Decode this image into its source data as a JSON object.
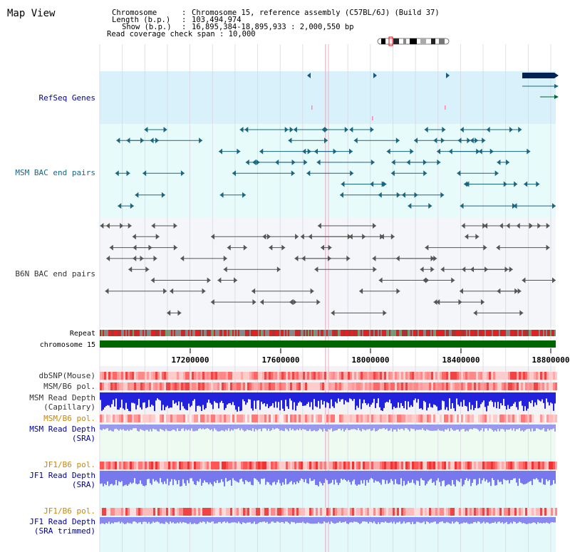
{
  "header": {
    "title": "Map View",
    "info_lines": [
      {
        "label": "Chromosome",
        "value": "Chromosome 15, reference assembly (C57BL/6J) (Build 37)"
      },
      {
        "label": "Length (b.p.)",
        "value": "103,494,974"
      },
      {
        "label": "Show (b.p.)",
        "value": "16,895,384-18,895,933 : 2,000,550 bp"
      }
    ],
    "coverage_line": "Read coverage check span : 10,000"
  },
  "tracks": {
    "refseq": {
      "label": "RefSeq Genes",
      "color": "#000099"
    },
    "msm_bac": {
      "label": "MSM BAC end pairs",
      "color": "#1a6680"
    },
    "b6n_bac": {
      "label": "B6N BAC end pairs",
      "color": "#333333"
    },
    "repeat": {
      "label": "Repeat"
    },
    "chromosome": {
      "label": "chromosome 15",
      "color": "#006600"
    },
    "dbsnp": {
      "label": "dbSNP(Mouse)"
    },
    "msm_b6_pol": {
      "label": "MSM/B6 pol."
    },
    "msm_depth_cap": {
      "label_line1": "MSM Read Depth",
      "label_line2": "(Capillary)"
    },
    "msm_b6_pol2": {
      "label": "MSM/B6 pol."
    },
    "msm_depth_sra": {
      "label_line1": "MSM Read Depth",
      "label_line2": "(SRA)"
    },
    "jf1_b6_pol": {
      "label": "JF1/B6 pol."
    },
    "jf1_depth_sra": {
      "label_line1": "JF1 Read Depth",
      "label_line2": "(SRA)"
    },
    "jf1_b6_pol2": {
      "label": "JF1/B6 pol."
    },
    "jf1_depth_trim": {
      "label_line1": "JF1 Read Depth",
      "label_line2": "(SRA trimmed)"
    }
  },
  "axis": {
    "ticks": [
      "17200000",
      "17600000",
      "18000000",
      "18400000",
      "18800000"
    ]
  },
  "colors": {
    "grey_label": "#333333",
    "dark_blue_label": "#000099",
    "orange_label": "#cc8800",
    "teal_label": "#1a6680"
  }
}
